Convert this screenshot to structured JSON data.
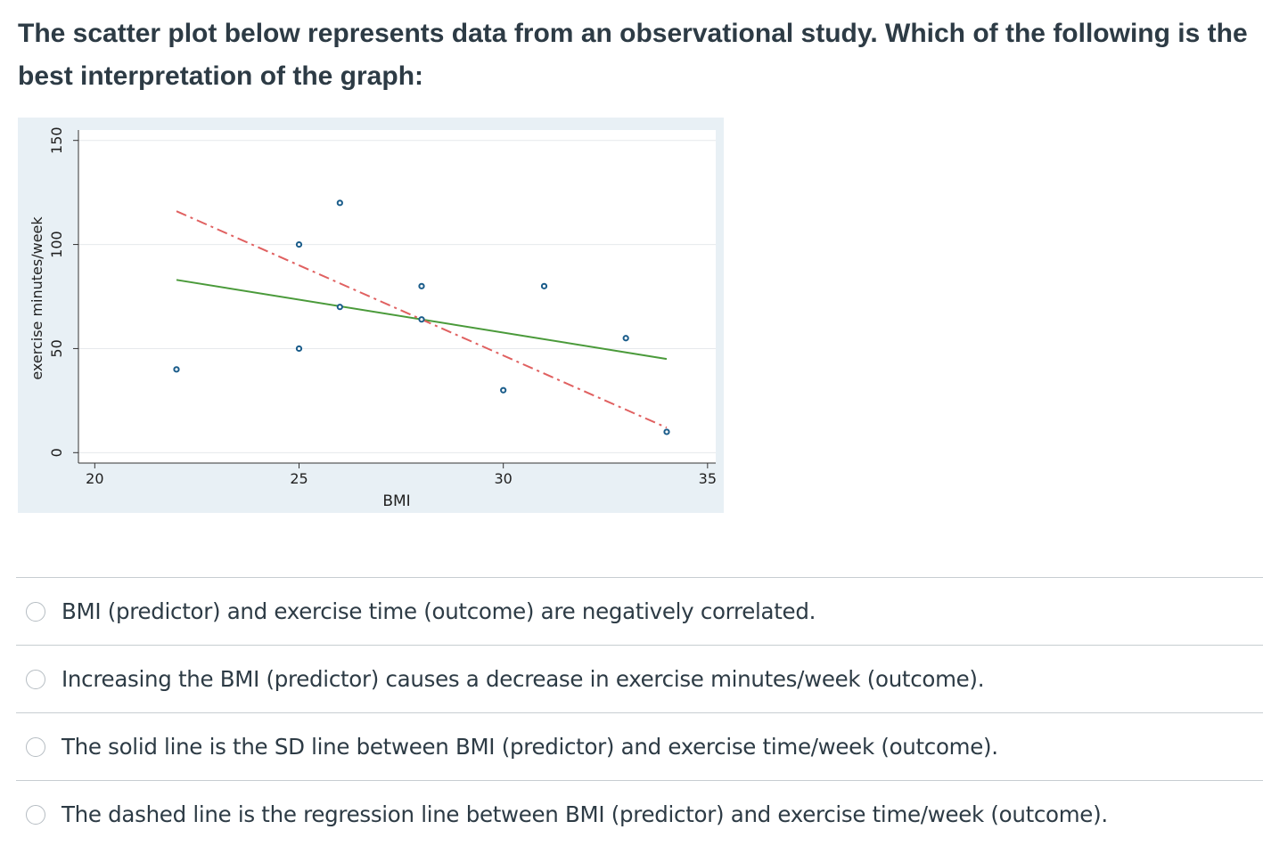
{
  "question": {
    "text": "The scatter plot below represents data from an observational study. Which of the following is the best interpretation of the graph:"
  },
  "chart_data": {
    "type": "scatter",
    "title": "",
    "xlabel": "BMI",
    "ylabel": "exercise minutes/week",
    "xlim": [
      19.6,
      35.2
    ],
    "ylim": [
      -5,
      155
    ],
    "x_ticks": [
      20,
      25,
      30,
      35
    ],
    "y_ticks": [
      0,
      50,
      100,
      150
    ],
    "grid": "horizontal",
    "points": [
      {
        "x": 22,
        "y": 40
      },
      {
        "x": 25,
        "y": 50
      },
      {
        "x": 25,
        "y": 100
      },
      {
        "x": 26,
        "y": 70
      },
      {
        "x": 26,
        "y": 120
      },
      {
        "x": 28,
        "y": 80
      },
      {
        "x": 28,
        "y": 64
      },
      {
        "x": 30,
        "y": 30
      },
      {
        "x": 31,
        "y": 80
      },
      {
        "x": 33,
        "y": 55
      },
      {
        "x": 34,
        "y": 10
      }
    ],
    "lines": [
      {
        "name": "solid",
        "style": "solid",
        "color": "#4a9a3a",
        "x": [
          22,
          34
        ],
        "y": [
          83,
          45
        ]
      },
      {
        "name": "dashed",
        "style": "dash-dot",
        "color": "#e06060",
        "x": [
          22,
          34
        ],
        "y": [
          116,
          12
        ]
      }
    ],
    "colors": {
      "background": "#e8f0f5",
      "plot": "#ffffff",
      "points": "#1a5c8a"
    }
  },
  "answers": [
    {
      "label": "BMI (predictor) and exercise time (outcome) are negatively correlated."
    },
    {
      "label": "Increasing the BMI (predictor) causes a decrease in exercise minutes/week (outcome)."
    },
    {
      "label": "The solid line is the SD line between BMI (predictor) and exercise time/week (outcome)."
    },
    {
      "label": "The dashed line is the regression line between BMI (predictor) and exercise time/week (outcome)."
    }
  ]
}
